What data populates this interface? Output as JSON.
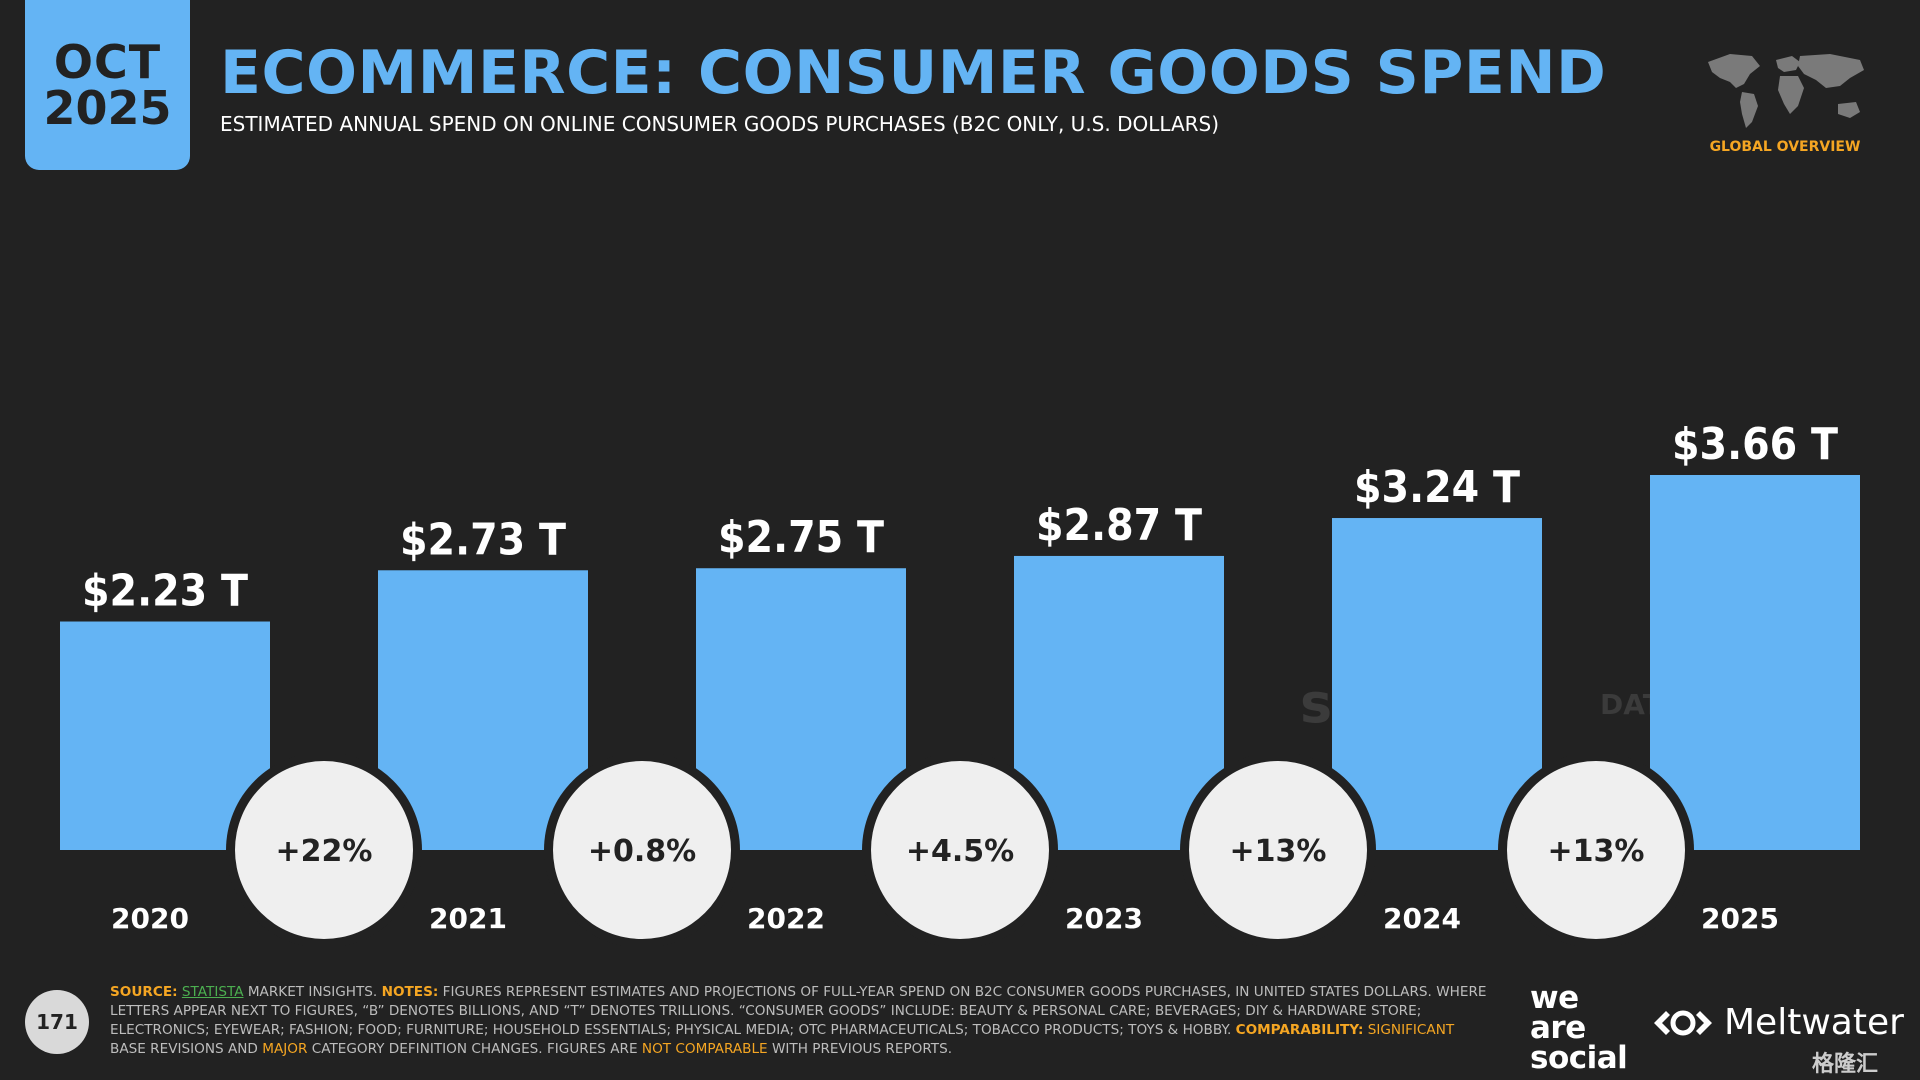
{
  "badge": {
    "month": "OCT",
    "year": "2025"
  },
  "header": {
    "title": "ECOMMERCE: CONSUMER GOODS SPEND",
    "subtitle": "ESTIMATED ANNUAL SPEND ON ONLINE CONSUMER GOODS PURCHASES (B2C ONLY, U.S. DOLLARS)"
  },
  "globe_label": "GLOBAL OVERVIEW",
  "colors": {
    "bar": "#64b4f4",
    "background": "#222222",
    "accent": "#f5a623",
    "bubble": "#efefef"
  },
  "chart_data": {
    "type": "bar",
    "title": "ECOMMERCE: CONSUMER GOODS SPEND",
    "categories": [
      "2020",
      "2021",
      "2022",
      "2023",
      "2024",
      "2025"
    ],
    "values": [
      2.23,
      2.73,
      2.75,
      2.87,
      3.24,
      3.66
    ],
    "value_labels": [
      "$2.23 T",
      "$2.73 T",
      "$2.75 T",
      "$2.87 T",
      "$3.24 T",
      "$3.66 T"
    ],
    "growth_labels": [
      "+22%",
      "+0.8%",
      "+4.5%",
      "+13%",
      "+13%"
    ],
    "unit": "U.S. DOLLARS (TRILLIONS)",
    "ylim": [
      0,
      3.66
    ],
    "grid": false,
    "legend": "none"
  },
  "watermarks": {
    "statista": "statista",
    "datareportal": "DATAREPORTAL"
  },
  "footer": {
    "source_label": "SOURCE:",
    "source_link": "STATISTA",
    "source_rest": "MARKET INSIGHTS.",
    "notes_label": "NOTES:",
    "notes_text": "FIGURES REPRESENT ESTIMATES AND PROJECTIONS OF FULL-YEAR SPEND ON B2C CONSUMER GOODS PURCHASES, IN UNITED STATES DOLLARS. WHERE LETTERS APPEAR NEXT TO FIGURES, “B” DENOTES BILLIONS, AND “T” DENOTES TRILLIONS. “CONSUMER GOODS” INCLUDE: BEAUTY & PERSONAL CARE; BEVERAGES; DIY & HARDWARE STORE; ELECTRONICS; EYEWEAR; FASHION; FOOD; FURNITURE; HOUSEHOLD ESSENTIALS; PHYSICAL MEDIA; OTC PHARMACEUTICALS; TOBACCO PRODUCTS; TOYS & HOBBY.",
    "comparability_label": "COMPARABILITY:",
    "comparability_1": "SIGNIFICANT",
    "comparability_2": "BASE REVISIONS AND",
    "comparability_3": "MAJOR",
    "comparability_4": "CATEGORY DEFINITION CHANGES. FIGURES ARE",
    "comparability_5": "NOT COMPARABLE",
    "comparability_6": "WITH PREVIOUS REPORTS."
  },
  "page_number": "171",
  "logos": {
    "was_1": "we",
    "was_2": "are",
    "was_3": "social",
    "meltwater": "Meltwater",
    "corner": "格隆汇"
  }
}
